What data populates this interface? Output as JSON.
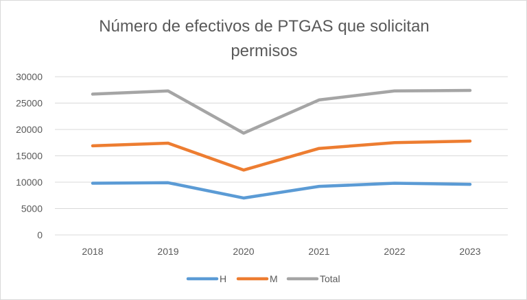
{
  "chart_data": {
    "type": "line",
    "title_line1": "Número de efectivos de PTGAS que solicitan",
    "title_line2": "permisos",
    "categories": [
      "2018",
      "2019",
      "2020",
      "2021",
      "2022",
      "2023"
    ],
    "y_ticks": [
      "0",
      "5000",
      "10000",
      "15000",
      "20000",
      "25000",
      "30000"
    ],
    "ylim": [
      0,
      30000
    ],
    "grid": true,
    "legend_position": "bottom",
    "series": [
      {
        "name": "H",
        "color": "#5b9bd5",
        "values": [
          9800,
          9900,
          7000,
          9200,
          9800,
          9600
        ]
      },
      {
        "name": "M",
        "color": "#ed7d31",
        "values": [
          16900,
          17400,
          12300,
          16400,
          17500,
          17800
        ]
      },
      {
        "name": "Total",
        "color": "#a5a5a5",
        "values": [
          26700,
          27300,
          19300,
          25600,
          27300,
          27400
        ]
      }
    ]
  }
}
